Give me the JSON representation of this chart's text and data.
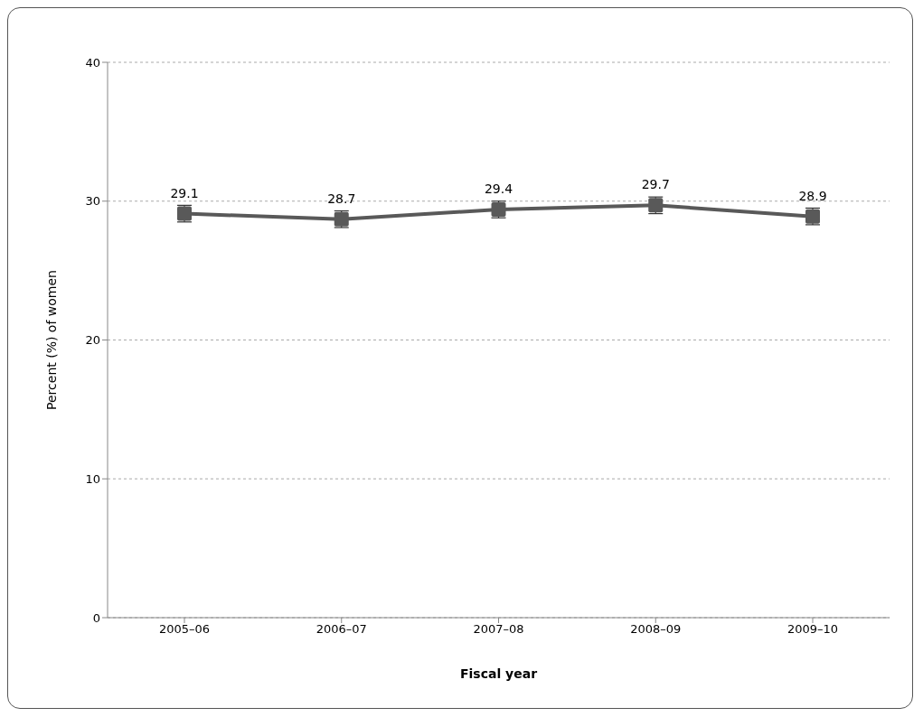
{
  "chart_data": {
    "type": "line",
    "xlabel": "Fiscal year",
    "ylabel": "Percent (%) of women",
    "categories": [
      "2005–06",
      "2006–07",
      "2007–08",
      "2008–09",
      "2009–10"
    ],
    "series": [
      {
        "color": "#595959",
        "values": [
          29.1,
          28.7,
          29.4,
          29.7,
          28.9
        ],
        "errors": [
          0.6,
          0.6,
          0.6,
          0.6,
          0.6
        ]
      }
    ],
    "ylim": [
      0,
      40
    ],
    "yticks": [
      0,
      10,
      20,
      30,
      40
    ],
    "grid": "y",
    "marker": "square",
    "data_labels": true
  }
}
